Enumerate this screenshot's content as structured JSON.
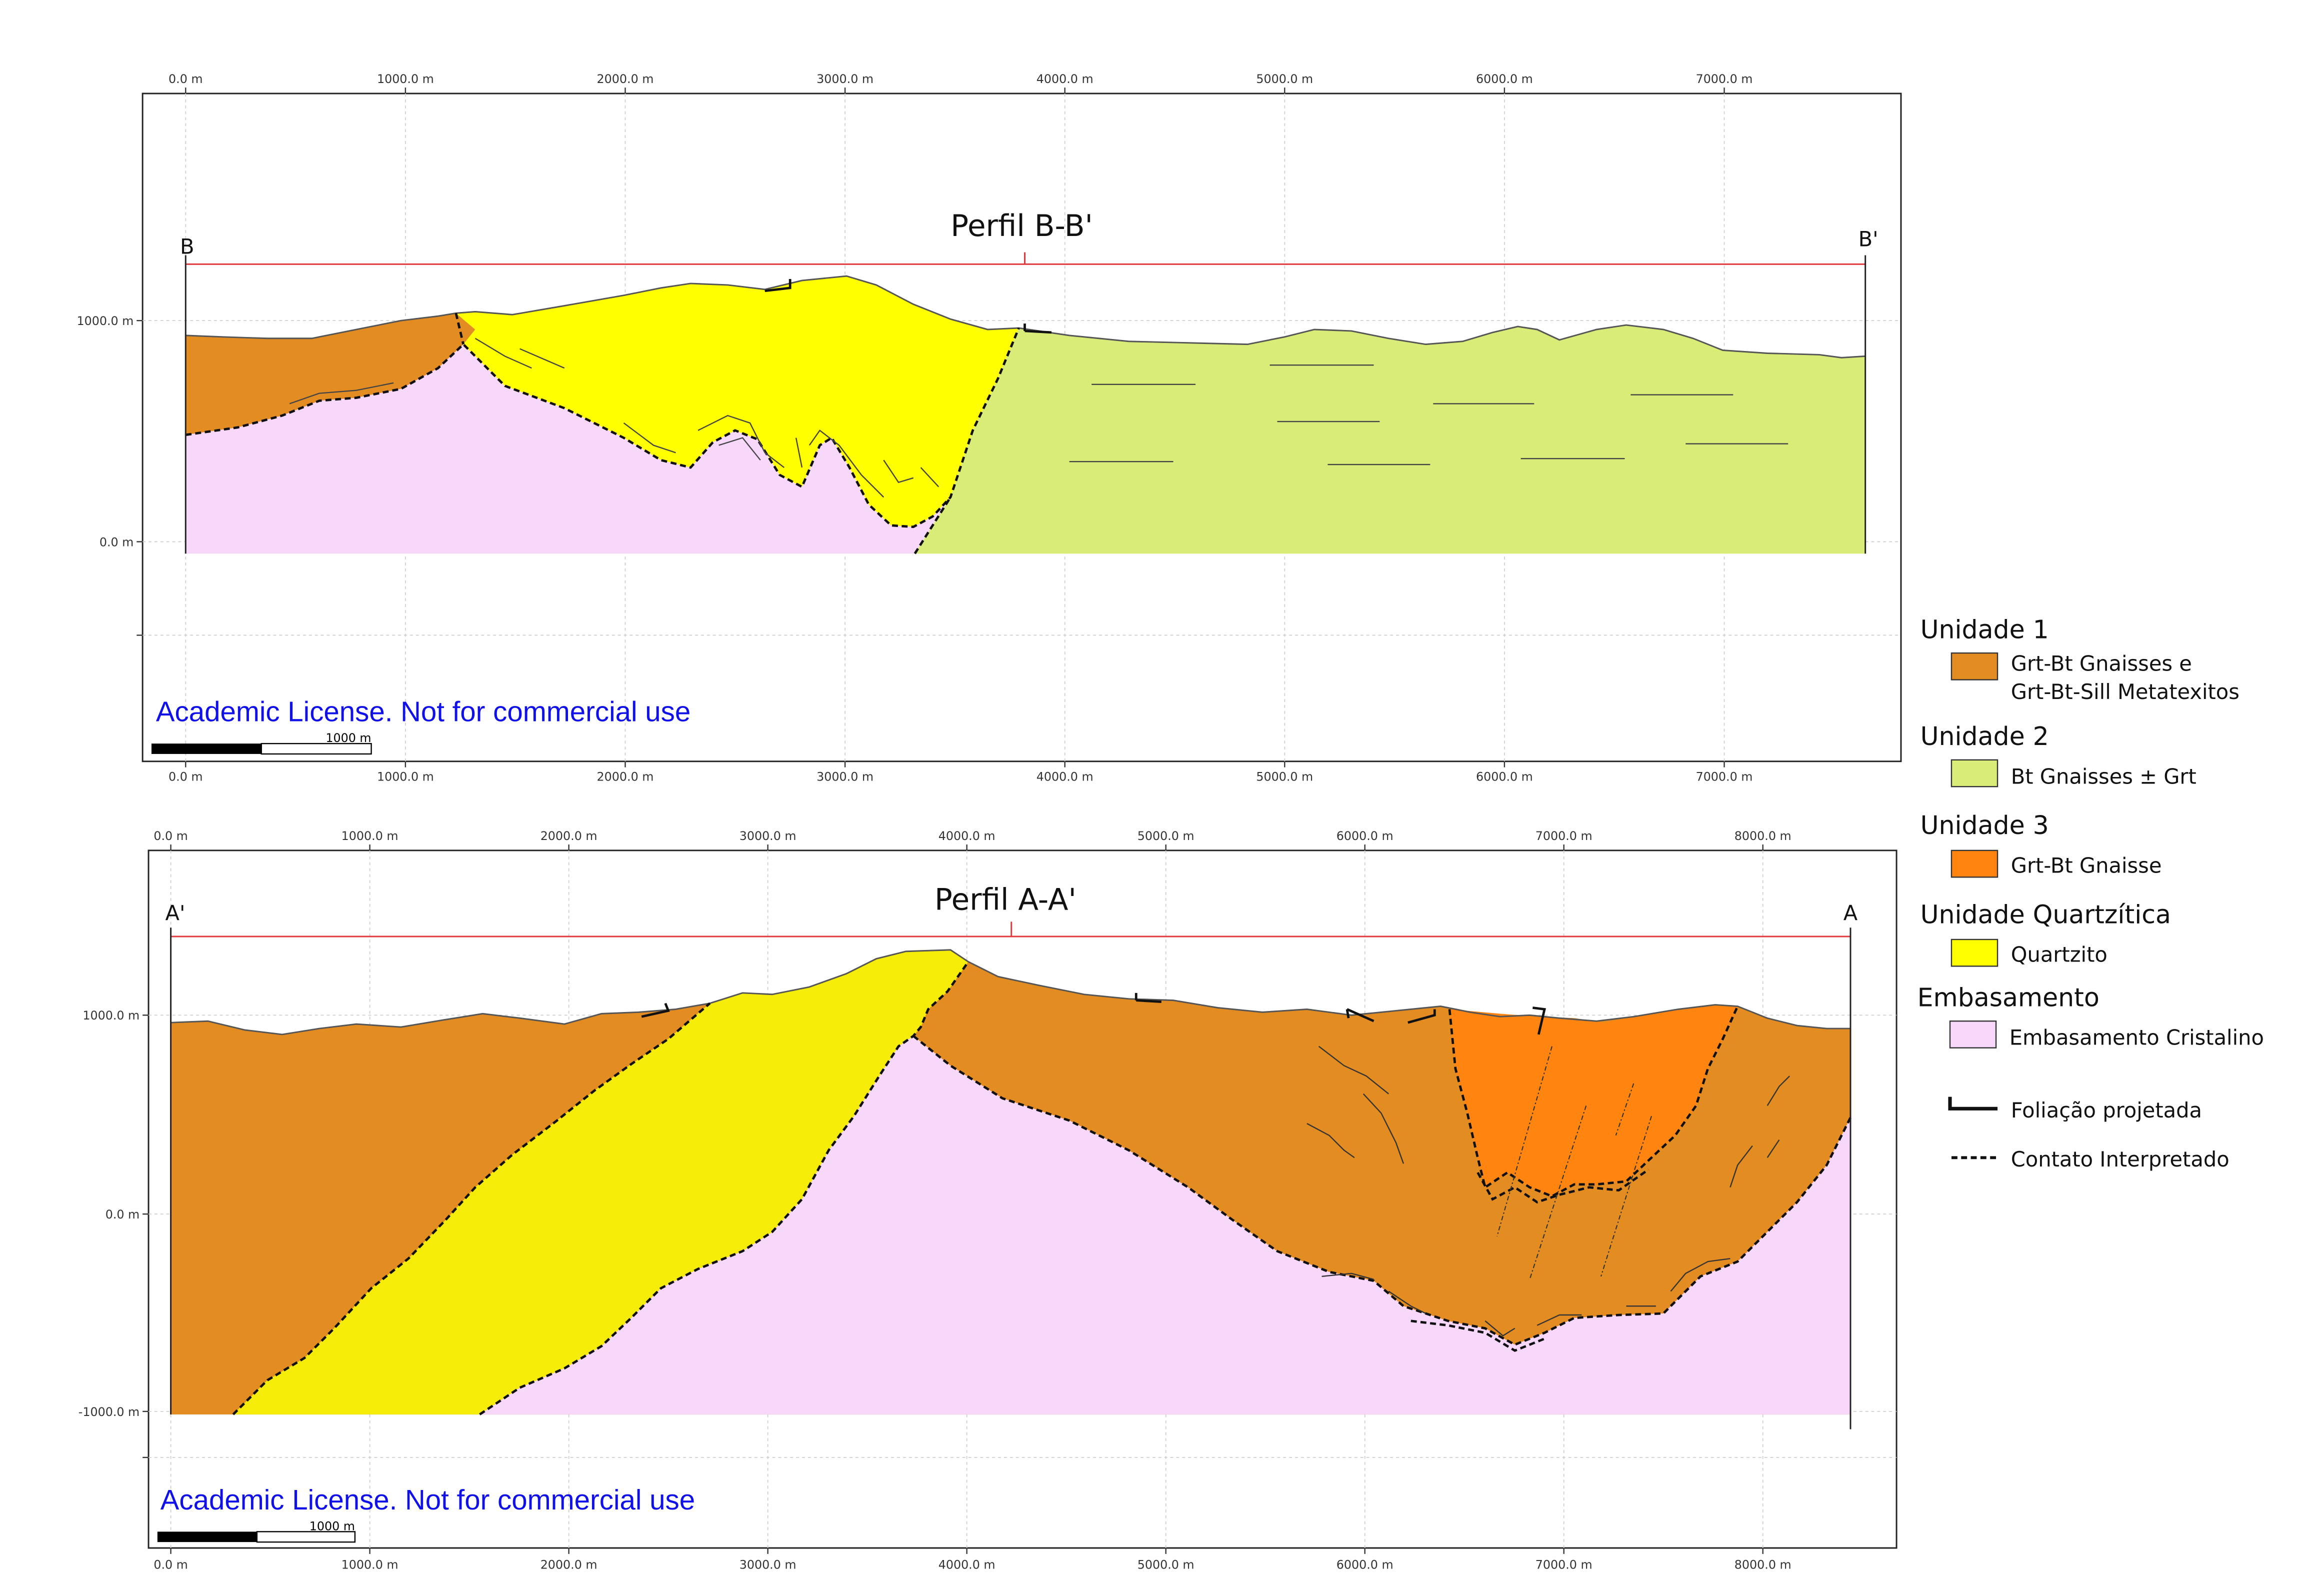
{
  "profile_bb": {
    "title": "Perfil B-B'",
    "start_label": "B",
    "end_label": "B'",
    "x_ticks": [
      "0.0 m",
      "1000.0 m",
      "2000.0 m",
      "3000.0 m",
      "4000.0 m",
      "5000.0 m",
      "6000.0 m",
      "7000.0 m"
    ],
    "y_ticks": [
      "1000.0 m",
      "0.0 m"
    ],
    "watermark": "Academic License. Not for commercial use",
    "scale_bar_label": "1000 m"
  },
  "profile_aa": {
    "title": "Perfil A-A'",
    "start_label": "A'",
    "end_label": "A",
    "x_ticks": [
      "0.0 m",
      "1000.0 m",
      "2000.0 m",
      "3000.0 m",
      "4000.0 m",
      "5000.0 m",
      "6000.0 m",
      "7000.0 m",
      "8000.0 m"
    ],
    "y_ticks": [
      "1000.0 m",
      "0.0 m",
      "-1000.0 m"
    ],
    "watermark": "Academic License. Not for commercial use",
    "scale_bar_label": "1000 m"
  },
  "legend": {
    "groups": [
      {
        "heading": "Unidade 1",
        "items": [
          {
            "label_lines": [
              "Grt-Bt Gnaisses e",
              "Grt-Bt-Sill Metatexitos"
            ],
            "color": "#e38c22"
          }
        ]
      },
      {
        "heading": "Unidade 2",
        "items": [
          {
            "label_lines": [
              "Bt Gnaisses ± Grt"
            ],
            "color": "#d9ec78"
          }
        ]
      },
      {
        "heading": "Unidade 3",
        "items": [
          {
            "label_lines": [
              "Grt-Bt Gnaisse"
            ],
            "color": "#ff8410"
          }
        ]
      },
      {
        "heading": "Unidade Quartzítica",
        "items": [
          {
            "label_lines": [
              "Quartzito"
            ],
            "color": "#ffff00"
          }
        ]
      },
      {
        "heading": "Embasamento",
        "items": [
          {
            "label_lines": [
              "Embasamento Cristalino"
            ],
            "color": "#f7d7fa"
          }
        ]
      }
    ],
    "symbols": [
      {
        "label": "Foliação projetada",
        "kind": "foliation-symbol"
      },
      {
        "label": "Contato Interpretado",
        "kind": "dashed-contact-line"
      }
    ]
  },
  "colors": {
    "unidade1": "#e38c22",
    "unidade2": "#d9ec78",
    "unidade3": "#ff8410",
    "quartzito_bb": "#ffff00",
    "quartzito_aa": "#f5ec08",
    "embasamento": "#f7d7fa",
    "profile_line": "#e0393e",
    "watermark": "#1010e8"
  }
}
